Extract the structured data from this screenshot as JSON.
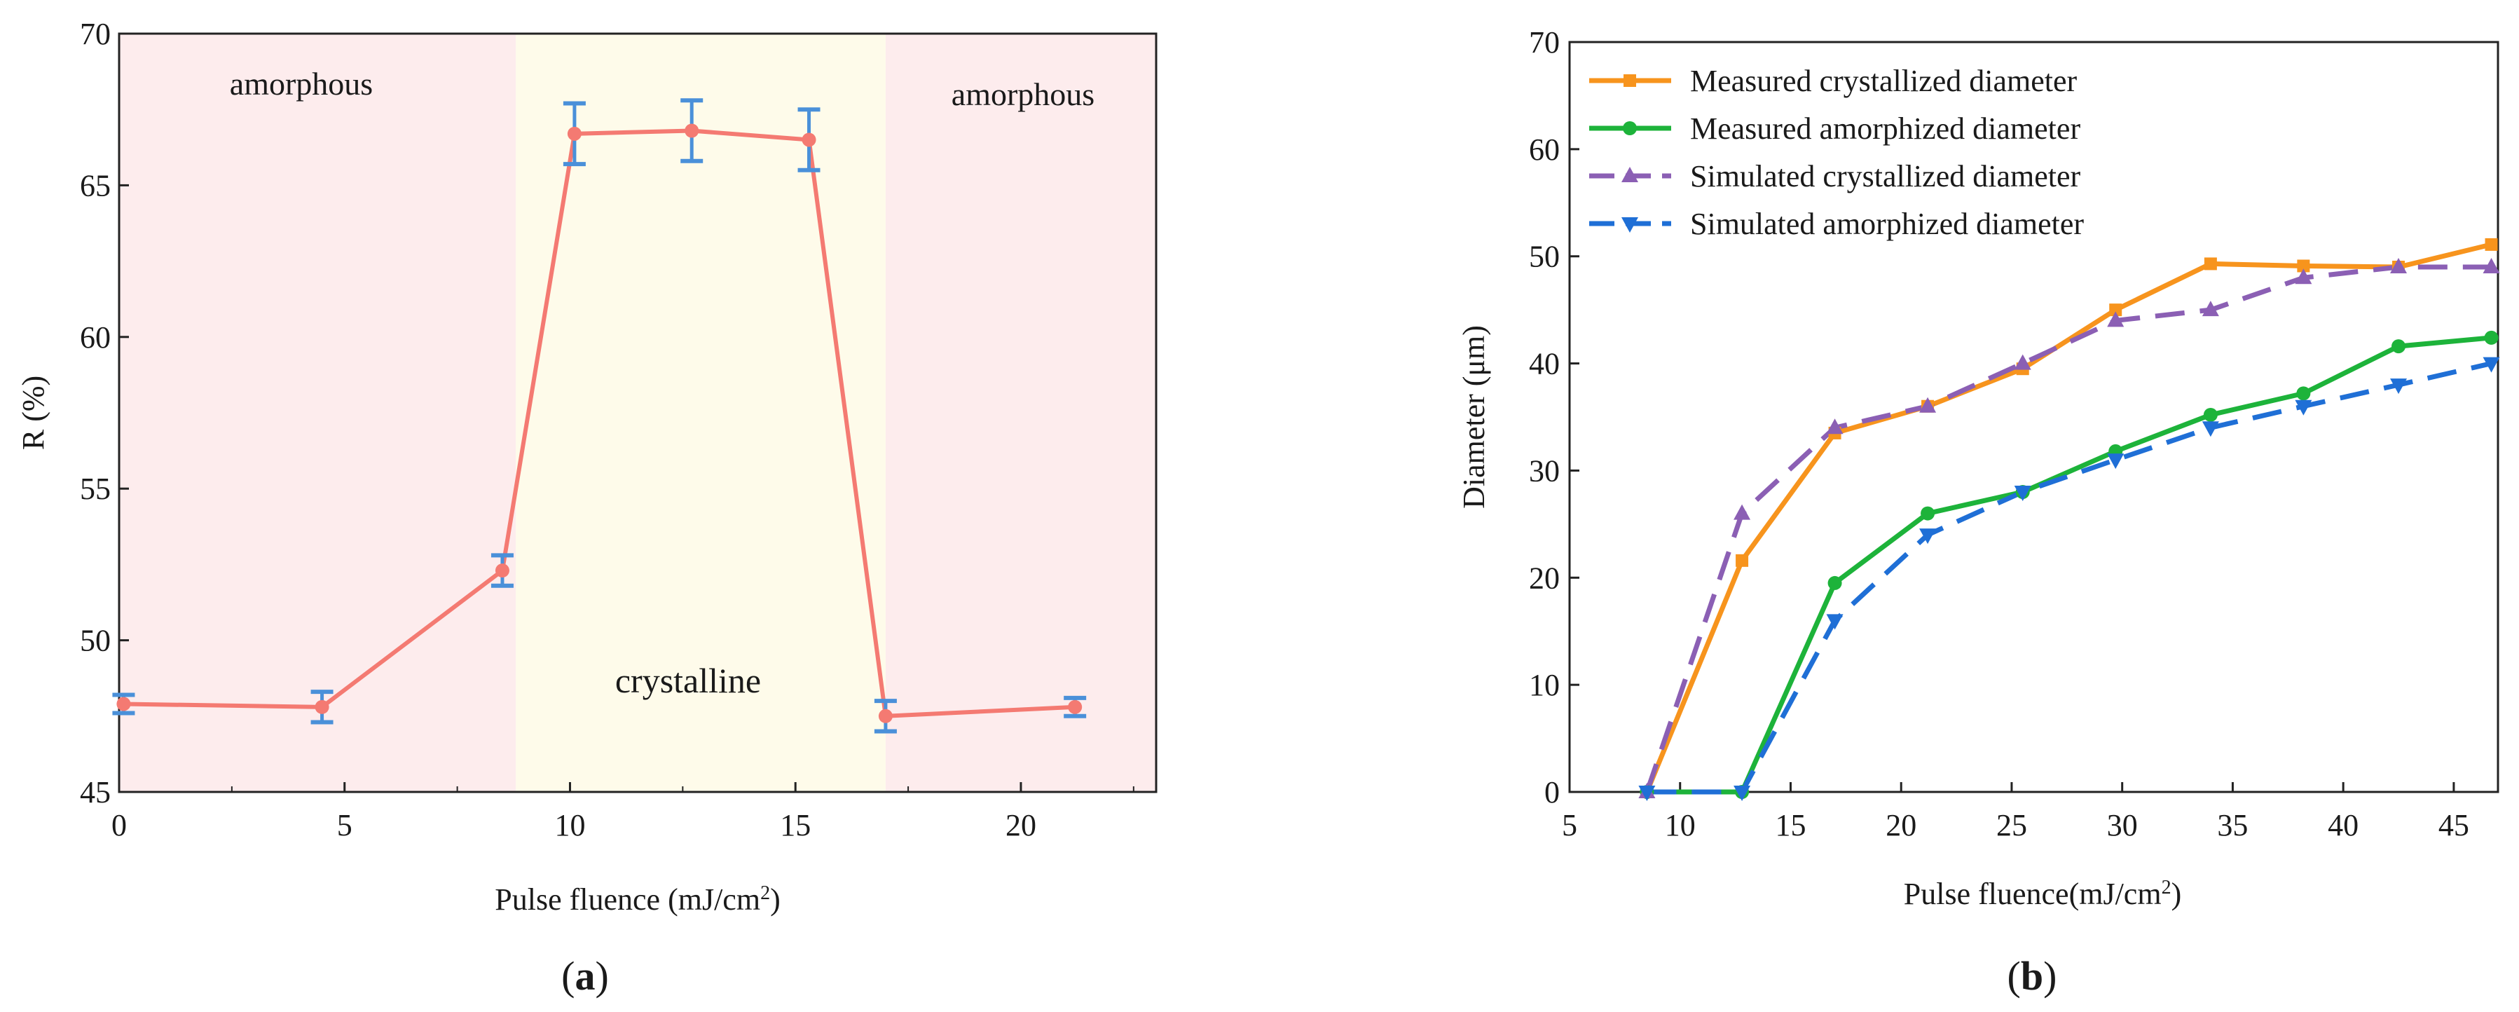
{
  "figure": {
    "panel_a_caption": "a",
    "panel_b_caption": "b"
  },
  "chart_data": [
    {
      "id": "a",
      "type": "line",
      "title": "",
      "xlabel": "Pulse fluence (mJ/cm",
      "xlabel_sup": "2",
      "xlabel_end": ")",
      "ylabel": "R (%)",
      "xlim": [
        0,
        23
      ],
      "ylim": [
        45,
        70
      ],
      "xticks": [
        0,
        5,
        10,
        15,
        20
      ],
      "yticks": [
        45,
        50,
        55,
        60,
        65,
        70
      ],
      "regions": [
        {
          "label": "amorphous",
          "x0": 0,
          "x1": 8.8,
          "color": "#fdeced"
        },
        {
          "label": "crystalline",
          "x0": 8.8,
          "x1": 17.0,
          "color": "#fefbea"
        },
        {
          "label": "amorphous",
          "x0": 17.0,
          "x1": 23,
          "color": "#fdeced"
        }
      ],
      "annotations": [
        "amorphous",
        "crystalline",
        "amorphous"
      ],
      "series": [
        {
          "name": "R",
          "color": "#f47a72",
          "error_color": "#4a90d9",
          "x": [
            0.1,
            4.5,
            8.5,
            10.1,
            12.7,
            15.3,
            17.0,
            21.2
          ],
          "y": [
            47.9,
            47.8,
            52.3,
            66.7,
            66.8,
            66.5,
            47.5,
            47.8
          ],
          "err": [
            0.3,
            0.5,
            0.5,
            1.0,
            1.0,
            1.0,
            0.5,
            0.3
          ]
        }
      ]
    },
    {
      "id": "b",
      "type": "line",
      "title": "",
      "xlabel": "Pulse fluence(mJ/cm",
      "xlabel_sup": "2",
      "xlabel_end": ")",
      "ylabel": "Diameter (μm)",
      "xlim": [
        5,
        47
      ],
      "ylim": [
        0,
        70
      ],
      "xticks": [
        5,
        10,
        15,
        20,
        25,
        30,
        35,
        40,
        45
      ],
      "yticks": [
        0,
        10,
        20,
        30,
        40,
        50,
        60,
        70
      ],
      "legend_position": "top-left",
      "series": [
        {
          "name": "Measured crystallized diameter",
          "color": "#f7941d",
          "dash": false,
          "marker": "square",
          "x": [
            8.5,
            12.8,
            17.0,
            21.2,
            25.5,
            29.7,
            34.0,
            38.2,
            42.5,
            46.7
          ],
          "y": [
            0,
            21.6,
            33.5,
            36.0,
            39.5,
            45.0,
            49.3,
            49.1,
            49.0,
            51.1
          ]
        },
        {
          "name": "Measured amorphized diameter",
          "color": "#1db33a",
          "dash": false,
          "marker": "circle",
          "x": [
            8.5,
            12.8,
            17.0,
            21.2,
            25.5,
            29.7,
            34.0,
            38.2,
            42.5,
            46.7
          ],
          "y": [
            0,
            0,
            19.5,
            26.0,
            28.0,
            31.8,
            35.2,
            37.2,
            41.6,
            42.4
          ]
        },
        {
          "name": "Simulated crystallized diameter",
          "color": "#8b5fb4",
          "dash": true,
          "marker": "triangle-up",
          "x": [
            8.5,
            12.8,
            17.0,
            21.2,
            25.5,
            29.7,
            34.0,
            38.2,
            42.5,
            46.7
          ],
          "y": [
            0,
            26.0,
            34.0,
            36.0,
            40.0,
            44.0,
            45.0,
            48.0,
            49.0,
            49.0
          ]
        },
        {
          "name": "Simulated amorphized diameter",
          "color": "#1f6fd6",
          "dash": true,
          "marker": "triangle-down",
          "x": [
            8.5,
            12.8,
            17.0,
            21.2,
            25.5,
            29.7,
            34.0,
            38.2,
            42.5,
            46.7
          ],
          "y": [
            0,
            0,
            16.0,
            24.0,
            28.0,
            31.0,
            34.0,
            36.0,
            38.0,
            40.0
          ]
        }
      ]
    }
  ]
}
